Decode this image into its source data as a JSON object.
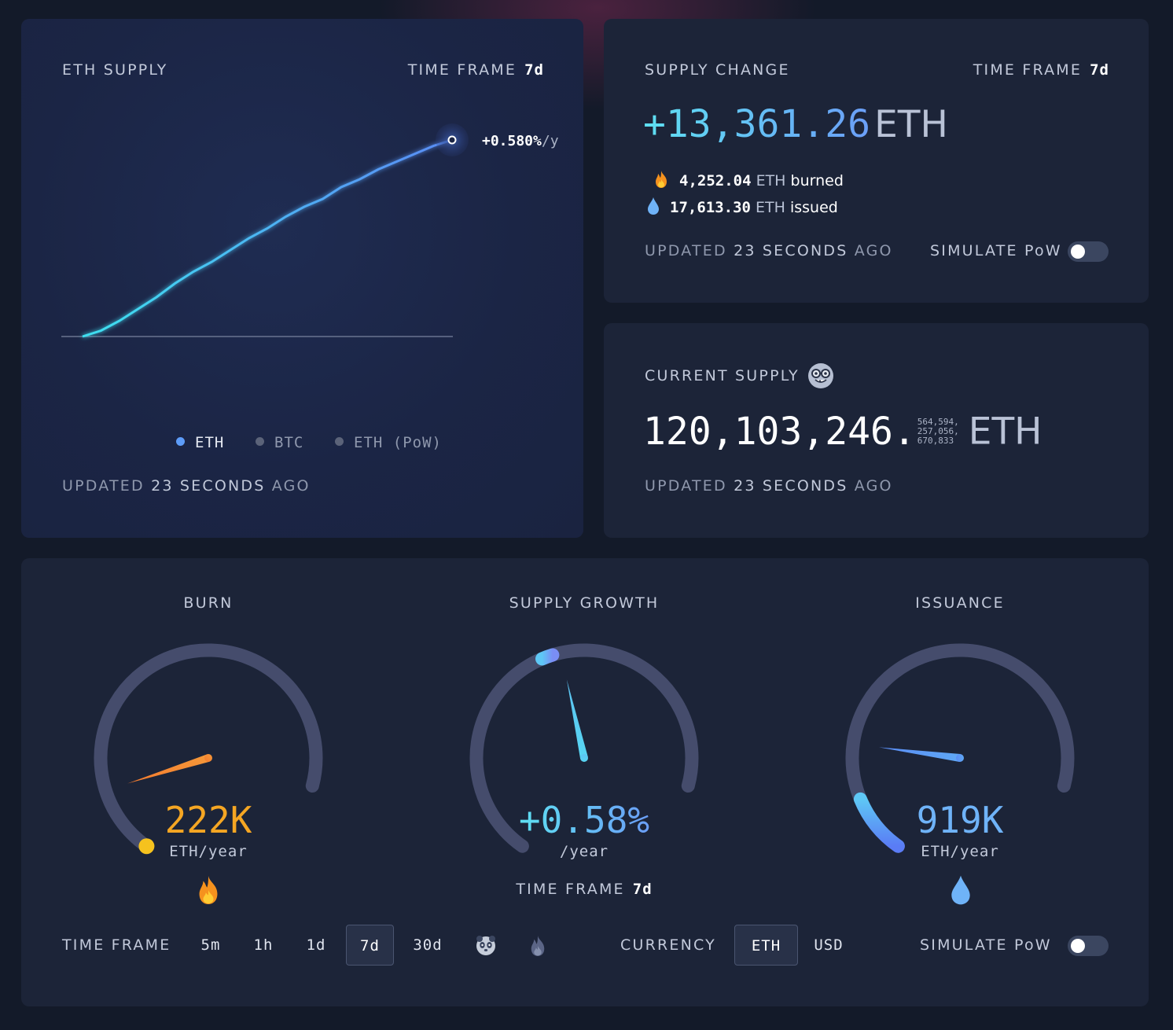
{
  "eth_supply_card": {
    "title": "ETH SUPPLY",
    "time_frame_label": "TIME FRAME",
    "time_frame_value": "7d",
    "growth_label_value": "+0.580%",
    "growth_label_unit": "/y",
    "legend": [
      {
        "label": "ETH",
        "color": "#5d9cf8",
        "active": true
      },
      {
        "label": "BTC",
        "color": "#5b6379",
        "active": false
      },
      {
        "label": "ETH (PoW)",
        "color": "#5b6379",
        "active": false
      }
    ],
    "updated_prefix": "UPDATED",
    "updated_value": "23 SECONDS",
    "updated_suffix": "AGO"
  },
  "chart_data": {
    "type": "line",
    "title": "ETH SUPPLY",
    "xlabel": "",
    "ylabel": "",
    "series": [
      {
        "name": "ETH",
        "color": "#3cc8ee",
        "x": [
          0,
          0.05,
          0.1,
          0.15,
          0.2,
          0.25,
          0.3,
          0.35,
          0.4,
          0.45,
          0.5,
          0.55,
          0.6,
          0.65,
          0.7,
          0.75,
          0.8,
          0.85,
          0.9,
          0.95,
          1.0
        ],
        "y": [
          0,
          0.03,
          0.08,
          0.14,
          0.2,
          0.27,
          0.33,
          0.38,
          0.44,
          0.5,
          0.55,
          0.61,
          0.66,
          0.7,
          0.76,
          0.8,
          0.85,
          0.89,
          0.93,
          0.97,
          1.0
        ]
      }
    ],
    "end_label": "+0.580%/y",
    "grid": false
  },
  "supply_change_card": {
    "title": "SUPPLY CHANGE",
    "time_frame_label": "TIME FRAME",
    "time_frame_value": "7d",
    "amount": "+13,361.26",
    "amount_unit": "ETH",
    "burned_value": "4,252.04",
    "burned_unit": "ETH",
    "burned_label": "burned",
    "issued_value": "17,613.30",
    "issued_unit": "ETH",
    "issued_label": "issued",
    "updated_prefix": "UPDATED",
    "updated_value": "23 SECONDS",
    "updated_suffix": "AGO",
    "simulate_label": "SIMULATE PoW",
    "simulate_on": false
  },
  "current_supply_card": {
    "title": "CURRENT SUPPLY",
    "integer_part": "120,103,246.",
    "decimals_line1": "564,594,",
    "decimals_line2": "257,056,",
    "decimals_line3": "670,833",
    "unit": "ETH",
    "updated_prefix": "UPDATED",
    "updated_value": "23 SECONDS",
    "updated_suffix": "AGO"
  },
  "gauges": {
    "burn": {
      "title": "BURN",
      "value": "222K",
      "unit": "ETH/year",
      "color": "#f5a623",
      "fraction": 0.15
    },
    "supply_growth": {
      "title": "SUPPLY GROWTH",
      "value": "+0.58%",
      "unit": "/year",
      "time_frame_label": "TIME FRAME",
      "time_frame_value": "7d",
      "fraction": 0.53
    },
    "issuance": {
      "title": "ISSUANCE",
      "value": "919K",
      "unit": "ETH/year",
      "color": "#6fb3f8",
      "fraction": 0.25
    }
  },
  "controls": {
    "time_frame_label": "TIME FRAME",
    "time_frames": [
      "5m",
      "1h",
      "1d",
      "7d",
      "30d"
    ],
    "active_time_frame": "7d",
    "currency_label": "CURRENCY",
    "currencies": [
      "ETH",
      "USD"
    ],
    "active_currency": "ETH",
    "simulate_label": "SIMULATE PoW",
    "simulate_on": false
  }
}
